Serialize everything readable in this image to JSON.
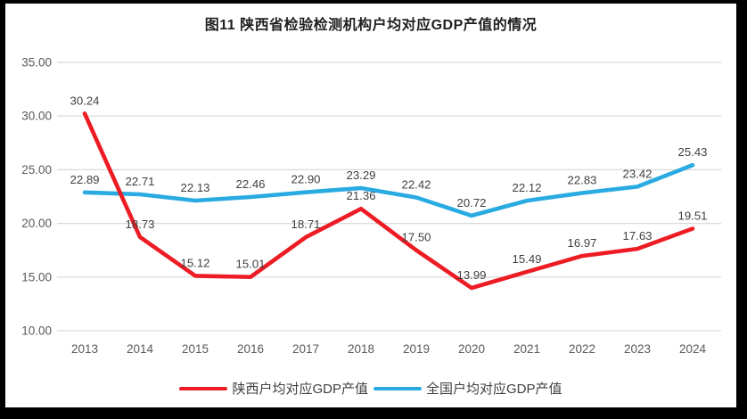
{
  "frame": {
    "background_color": "#000000",
    "chart_background_color": "#ffffff"
  },
  "chart_data": {
    "type": "line",
    "title": "图11  陕西省检验检测机构户均对应GDP产值的情况",
    "categories": [
      "2013",
      "2014",
      "2015",
      "2016",
      "2017",
      "2018",
      "2019",
      "2020",
      "2021",
      "2022",
      "2023",
      "2024"
    ],
    "series": [
      {
        "name": "全国户均对应GDP产值",
        "color": "#29abe2",
        "values": [
          22.89,
          22.71,
          22.13,
          22.46,
          22.9,
          23.29,
          22.42,
          20.72,
          22.12,
          22.83,
          23.42,
          25.43
        ]
      },
      {
        "name": "陕西户均对应GDP产值",
        "color": "#ed1c24",
        "values": [
          30.24,
          18.73,
          15.12,
          15.01,
          18.71,
          21.36,
          17.5,
          13.99,
          15.49,
          16.97,
          17.63,
          19.51
        ]
      }
    ],
    "legend_order": [
      "陕西户均对应GDP产值",
      "全国户均对应GDP产值"
    ],
    "y_axis": {
      "min": 10,
      "max": 35,
      "step": 5,
      "ticks": [
        "10.00",
        "15.00",
        "20.00",
        "25.00",
        "30.00",
        "35.00"
      ]
    },
    "grid": true,
    "data_labels": true,
    "legend_position": "bottom",
    "style": {
      "gridline_color": "#d9d9d9",
      "tick_label_color": "#595959",
      "data_label_color": "#3f3f3f"
    }
  }
}
